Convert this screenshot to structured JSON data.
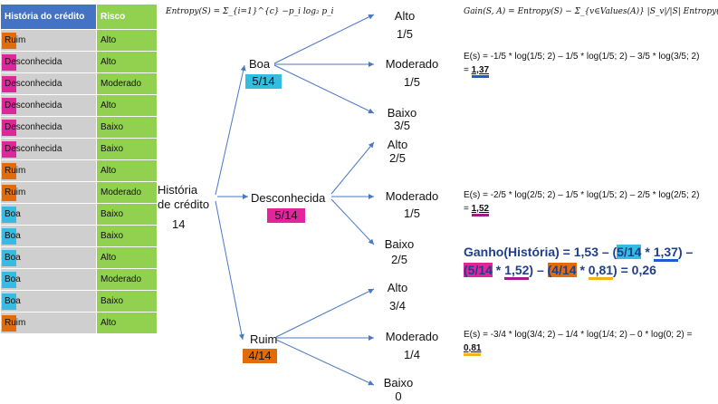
{
  "table": {
    "headers": [
      "História do crédito",
      "Risco"
    ],
    "rows": [
      {
        "historia": "Ruim",
        "risco": "Alto",
        "mark": "ruim"
      },
      {
        "historia": "Desconhecida",
        "risco": "Alto",
        "mark": "desc"
      },
      {
        "historia": "Desconhecida",
        "risco": "Moderado",
        "mark": "desc"
      },
      {
        "historia": "Desconhecida",
        "risco": "Alto",
        "mark": "desc"
      },
      {
        "historia": "Desconhecida",
        "risco": "Baixo",
        "mark": "desc"
      },
      {
        "historia": "Desconhecida",
        "risco": "Baixo",
        "mark": "desc"
      },
      {
        "historia": "Ruim",
        "risco": "Alto",
        "mark": "ruim"
      },
      {
        "historia": "Ruim",
        "risco": "Moderado",
        "mark": "ruim"
      },
      {
        "historia": "Boa",
        "risco": "Baixo",
        "mark": "boa"
      },
      {
        "historia": "Boa",
        "risco": "Baixo",
        "mark": "boa"
      },
      {
        "historia": "Boa",
        "risco": "Alto",
        "mark": "boa"
      },
      {
        "historia": "Boa",
        "risco": "Moderado",
        "mark": "boa"
      },
      {
        "historia": "Boa",
        "risco": "Baixo",
        "mark": "boa"
      },
      {
        "historia": "Ruim",
        "risco": "Alto",
        "mark": "ruim"
      }
    ]
  },
  "formulas": {
    "entropy": "Entropy(S) = Σ_{i=1}^{c} −p_i log₂ p_i",
    "gain": "Gain(S, A) = Entropy(S) − Σ_{v∈Values(A)} |S_v|/|S| Entropy(S_v)"
  },
  "tree": {
    "root_line1": "História",
    "root_line2": "de crédito",
    "root_count": "14",
    "boa": {
      "label": "Boa",
      "frac": "5/14",
      "leaves": [
        {
          "label": "Alto",
          "frac": "1/5"
        },
        {
          "label": "Moderado",
          "frac": "1/5"
        },
        {
          "label": "Baixo",
          "frac": "3/5"
        }
      ]
    },
    "desc": {
      "label": "Desconhecida",
      "frac": "5/14",
      "leaves": [
        {
          "label": "Alto",
          "frac": "2/5"
        },
        {
          "label": "Moderado",
          "frac": "1/5"
        },
        {
          "label": "Baixo",
          "frac": "2/5"
        }
      ]
    },
    "ruim": {
      "label": "Ruim",
      "frac": "4/14",
      "leaves": [
        {
          "label": "Alto",
          "frac": "3/4"
        },
        {
          "label": "Moderado",
          "frac": "1/4"
        },
        {
          "label": "Baixo",
          "frac": "0"
        }
      ]
    }
  },
  "calcs": {
    "boa_text": "E(s) = -1/5 * log(1/5; 2) – 1/5 * log(1/5; 2) – 3/5 * log(3/5; 2) = ",
    "boa_result": "1,37",
    "desc_text": "E(s) = -2/5 * log(2/5; 2) – 1/5 * log(1/5; 2) – 2/5 * log(2/5; 2) = ",
    "desc_result": "1,52",
    "ruim_text": "E(s) = -3/4 * log(3/4; 2) – 1/4 * log(1/4; 2) – 0 * log(0; 2) = ",
    "ruim_result": "0,81"
  },
  "gain": {
    "p1": "Ganho(História) = 1,53 – (",
    "boa_frac": "5/14",
    "p2": " * ",
    "boa_e": "1,37",
    "p3": ") –",
    "desc_frac": "(5/14",
    "p4": " * ",
    "desc_e": "1,52",
    "p5": ") – ",
    "ruim_frac": "(4/14",
    "p6": " * ",
    "ruim_e": "0,81",
    "p7": ") = 0,26"
  },
  "colors": {
    "header": "#4472c4",
    "risk_bg": "#92d050",
    "hist_bg": "#cfcfcf",
    "boa": "#35bde0",
    "desc": "#e0269a",
    "ruim": "#e36c0a",
    "arrow": "#4a78c2"
  }
}
